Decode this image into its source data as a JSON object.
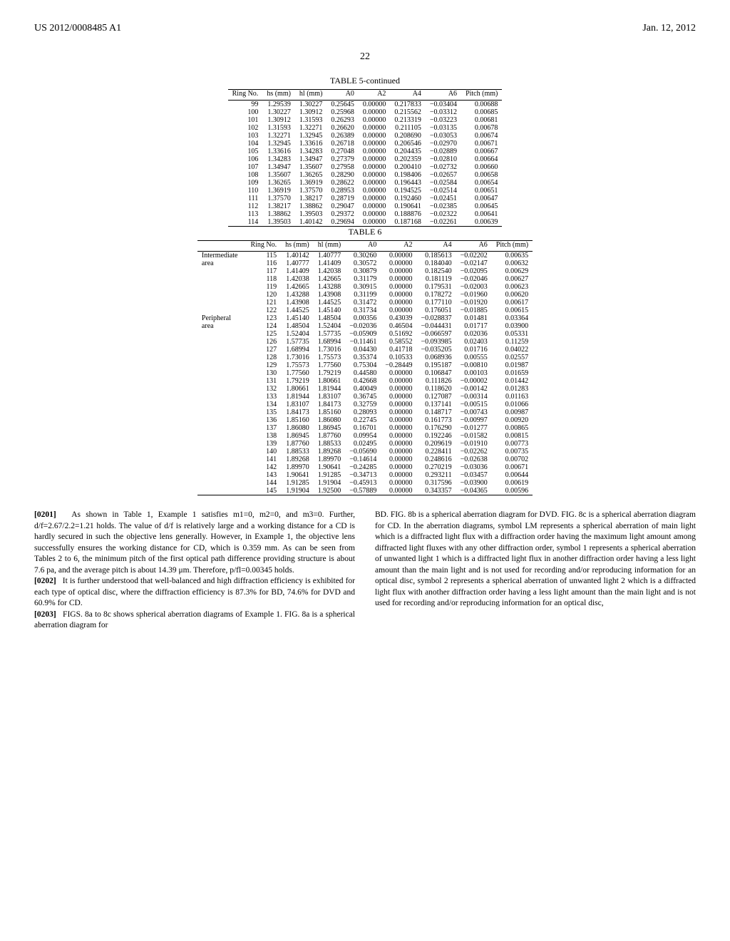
{
  "header": {
    "left": "US 2012/0008485 A1",
    "right": "Jan. 12, 2012"
  },
  "page_number": "22",
  "table5": {
    "title": "TABLE 5-continued",
    "columns": [
      "Ring No.",
      "hs (mm)",
      "hl (mm)",
      "A0",
      "A2",
      "A4",
      "A6",
      "Pitch (mm)"
    ],
    "rows": [
      [
        "99",
        "1.29539",
        "1.30227",
        "0.25645",
        "0.00000",
        "0.217833",
        "−0.03404",
        "0.00688"
      ],
      [
        "100",
        "1.30227",
        "1.30912",
        "0.25968",
        "0.00000",
        "0.215562",
        "−0.03312",
        "0.00685"
      ],
      [
        "101",
        "1.30912",
        "1.31593",
        "0.26293",
        "0.00000",
        "0.213319",
        "−0.03223",
        "0.00681"
      ],
      [
        "102",
        "1.31593",
        "1.32271",
        "0.26620",
        "0.00000",
        "0.211105",
        "−0.03135",
        "0.00678"
      ],
      [
        "103",
        "1.32271",
        "1.32945",
        "0.26389",
        "0.00000",
        "0.208690",
        "−0.03053",
        "0.00674"
      ],
      [
        "104",
        "1.32945",
        "1.33616",
        "0.26718",
        "0.00000",
        "0.206546",
        "−0.02970",
        "0.00671"
      ],
      [
        "105",
        "1.33616",
        "1.34283",
        "0.27048",
        "0.00000",
        "0.204435",
        "−0.02889",
        "0.00667"
      ],
      [
        "106",
        "1.34283",
        "1.34947",
        "0.27379",
        "0.00000",
        "0.202359",
        "−0.02810",
        "0.00664"
      ],
      [
        "107",
        "1.34947",
        "1.35607",
        "0.27958",
        "0.00000",
        "0.200410",
        "−0.02732",
        "0.00660"
      ],
      [
        "108",
        "1.35607",
        "1.36265",
        "0.28290",
        "0.00000",
        "0.198406",
        "−0.02657",
        "0.00658"
      ],
      [
        "109",
        "1.36265",
        "1.36919",
        "0.28622",
        "0.00000",
        "0.196443",
        "−0.02584",
        "0.00654"
      ],
      [
        "110",
        "1.36919",
        "1.37570",
        "0.28953",
        "0.00000",
        "0.194525",
        "−0.02514",
        "0.00651"
      ],
      [
        "111",
        "1.37570",
        "1.38217",
        "0.28719",
        "0.00000",
        "0.192460",
        "−0.02451",
        "0.00647"
      ],
      [
        "112",
        "1.38217",
        "1.38862",
        "0.29047",
        "0.00000",
        "0.190641",
        "−0.02385",
        "0.00645"
      ],
      [
        "113",
        "1.38862",
        "1.39503",
        "0.29372",
        "0.00000",
        "0.188876",
        "−0.02322",
        "0.00641"
      ],
      [
        "114",
        "1.39503",
        "1.40142",
        "0.29694",
        "0.00000",
        "0.187168",
        "−0.02261",
        "0.00639"
      ]
    ]
  },
  "table6": {
    "title": "TABLE 6",
    "columns": [
      "",
      "Ring No.",
      "hs (mm)",
      "hl (mm)",
      "A0",
      "A2",
      "A4",
      "A6",
      "Pitch (mm)"
    ],
    "areas": [
      {
        "label": "Intermediate area",
        "start": 0,
        "span": 8
      },
      {
        "label": "Peripheral area",
        "start": 8,
        "span": 23
      }
    ],
    "rows": [
      [
        "115",
        "1.40142",
        "1.40777",
        "0.30260",
        "0.00000",
        "0.185613",
        "−0.02202",
        "0.00635"
      ],
      [
        "116",
        "1.40777",
        "1.41409",
        "0.30572",
        "0.00000",
        "0.184040",
        "−0.02147",
        "0.00632"
      ],
      [
        "117",
        "1.41409",
        "1.42038",
        "0.30879",
        "0.00000",
        "0.182540",
        "−0.02095",
        "0.00629"
      ],
      [
        "118",
        "1.42038",
        "1.42665",
        "0.31179",
        "0.00000",
        "0.181119",
        "−0.02046",
        "0.00627"
      ],
      [
        "119",
        "1.42665",
        "1.43288",
        "0.30915",
        "0.00000",
        "0.179531",
        "−0.02003",
        "0.00623"
      ],
      [
        "120",
        "1.43288",
        "1.43908",
        "0.31199",
        "0.00000",
        "0.178272",
        "−0.01960",
        "0.00620"
      ],
      [
        "121",
        "1.43908",
        "1.44525",
        "0.31472",
        "0.00000",
        "0.177110",
        "−0.01920",
        "0.00617"
      ],
      [
        "122",
        "1.44525",
        "1.45140",
        "0.31734",
        "0.00000",
        "0.176051",
        "−0.01885",
        "0.00615"
      ],
      [
        "123",
        "1.45140",
        "1.48504",
        "0.00356",
        "0.43039",
        "−0.028837",
        "0.01481",
        "0.03364"
      ],
      [
        "124",
        "1.48504",
        "1.52404",
        "−0.02036",
        "0.46504",
        "−0.044431",
        "0.01717",
        "0.03900"
      ],
      [
        "125",
        "1.52404",
        "1.57735",
        "−0.05909",
        "0.51692",
        "−0.066597",
        "0.02036",
        "0.05331"
      ],
      [
        "126",
        "1.57735",
        "1.68994",
        "−0.11461",
        "0.58552",
        "−0.093985",
        "0.02403",
        "0.11259"
      ],
      [
        "127",
        "1.68994",
        "1.73016",
        "0.04430",
        "0.41718",
        "−0.035205",
        "0.01716",
        "0.04022"
      ],
      [
        "128",
        "1.73016",
        "1.75573",
        "0.35374",
        "0.10533",
        "0.068936",
        "0.00555",
        "0.02557"
      ],
      [
        "129",
        "1.75573",
        "1.77560",
        "0.75304",
        "−0.28449",
        "0.195187",
        "−0.00810",
        "0.01987"
      ],
      [
        "130",
        "1.77560",
        "1.79219",
        "0.44580",
        "0.00000",
        "0.106847",
        "0.00103",
        "0.01659"
      ],
      [
        "131",
        "1.79219",
        "1.80661",
        "0.42668",
        "0.00000",
        "0.111826",
        "−0.00002",
        "0.01442"
      ],
      [
        "132",
        "1.80661",
        "1.81944",
        "0.40049",
        "0.00000",
        "0.118620",
        "−0.00142",
        "0.01283"
      ],
      [
        "133",
        "1.81944",
        "1.83107",
        "0.36745",
        "0.00000",
        "0.127087",
        "−0.00314",
        "0.01163"
      ],
      [
        "134",
        "1.83107",
        "1.84173",
        "0.32759",
        "0.00000",
        "0.137141",
        "−0.00515",
        "0.01066"
      ],
      [
        "135",
        "1.84173",
        "1.85160",
        "0.28093",
        "0.00000",
        "0.148717",
        "−0.00743",
        "0.00987"
      ],
      [
        "136",
        "1.85160",
        "1.86080",
        "0.22745",
        "0.00000",
        "0.161773",
        "−0.00997",
        "0.00920"
      ],
      [
        "137",
        "1.86080",
        "1.86945",
        "0.16701",
        "0.00000",
        "0.176290",
        "−0.01277",
        "0.00865"
      ],
      [
        "138",
        "1.86945",
        "1.87760",
        "0.09954",
        "0.00000",
        "0.192246",
        "−0.01582",
        "0.00815"
      ],
      [
        "139",
        "1.87760",
        "1.88533",
        "0.02495",
        "0.00000",
        "0.209619",
        "−0.01910",
        "0.00773"
      ],
      [
        "140",
        "1.88533",
        "1.89268",
        "−0.05690",
        "0.00000",
        "0.228411",
        "−0.02262",
        "0.00735"
      ],
      [
        "141",
        "1.89268",
        "1.89970",
        "−0.14614",
        "0.00000",
        "0.248616",
        "−0.02638",
        "0.00702"
      ],
      [
        "142",
        "1.89970",
        "1.90641",
        "−0.24285",
        "0.00000",
        "0.270219",
        "−0.03036",
        "0.00671"
      ],
      [
        "143",
        "1.90641",
        "1.91285",
        "−0.34713",
        "0.00000",
        "0.293211",
        "−0.03457",
        "0.00644"
      ],
      [
        "144",
        "1.91285",
        "1.91904",
        "−0.45913",
        "0.00000",
        "0.317596",
        "−0.03900",
        "0.00619"
      ],
      [
        "145",
        "1.91904",
        "1.92500",
        "−0.57889",
        "0.00000",
        "0.343357",
        "−0.04365",
        "0.00596"
      ]
    ]
  },
  "body": {
    "p201_num": "[0201]",
    "p201": "As shown in Table 1, Example 1 satisfies m1=0, m2=0, and m3=0. Further, d/f=2.67/2.2=1.21 holds. The value of d/f is relatively large and a working distance for a CD is hardly secured in such the objective lens generally. However, in Example 1, the objective lens successfully ensures the working distance for CD, which is 0.359 mm. As can be seen from Tables 2 to 6, the minimum pitch of the first optical path difference providing structure is about 7.6 pa, and the average pitch is about 14.39 μm. Therefore, p/fl=0.00345 holds.",
    "p202_num": "[0202]",
    "p202": "It is further understood that well-balanced and high diffraction efficiency is exhibited for each type of optical disc, where the diffraction efficiency is 87.3% for BD, 74.6% for DVD and 60.9% for CD.",
    "p203_num": "[0203]",
    "p203": "FIGS. 8a to 8c shows spherical aberration diagrams of Example 1. FIG. 8a is a spherical aberration diagram for",
    "right": "BD. FIG. 8b is a spherical aberration diagram for DVD. FIG. 8c is a spherical aberration diagram for CD. In the aberration diagrams, symbol LM represents a spherical aberration of main light which is a diffracted light flux with a diffraction order having the maximum light amount among diffracted light fluxes with any other diffraction order, symbol 1 represents a spherical aberration of unwanted light 1 which is a diffracted light flux in another diffraction order having a less light amount than the main light and is not used for recording and/or reproducing information for an optical disc, symbol 2 represents a spherical aberration of unwanted light 2 which is a diffracted light flux with another diffraction order having a less light amount than the main light and is not used for recording and/or reproducing information for an optical disc,"
  }
}
